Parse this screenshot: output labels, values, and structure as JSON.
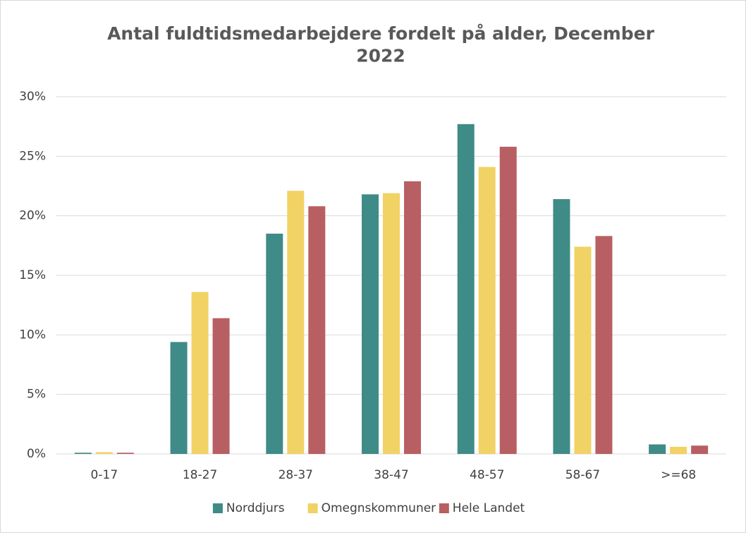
{
  "chart_data": {
    "type": "bar",
    "title": "Antal fuldtidsmedarbejdere fordelt på alder, December 2022",
    "categories": [
      "0-17",
      "18-27",
      "28-37",
      "38-47",
      "48-57",
      "58-67",
      ">=68"
    ],
    "series": [
      {
        "name": "Norddjurs",
        "color": "#3f8b87",
        "values": [
          0.1,
          9.4,
          18.5,
          21.8,
          27.7,
          21.4,
          0.8
        ]
      },
      {
        "name": "Omegnskommuner",
        "color": "#f1d264",
        "values": [
          0.15,
          13.6,
          22.1,
          21.9,
          24.1,
          17.4,
          0.6
        ]
      },
      {
        "name": "Hele Landet",
        "color": "#b85f63",
        "values": [
          0.1,
          11.4,
          20.8,
          22.9,
          25.8,
          18.3,
          0.7
        ]
      }
    ],
    "ylim": [
      0,
      30
    ],
    "yticks": [
      {
        "value": 0,
        "label": "0%"
      },
      {
        "value": 5,
        "label": "5%"
      },
      {
        "value": 10,
        "label": "10%"
      },
      {
        "value": 15,
        "label": "15%"
      },
      {
        "value": 20,
        "label": "20%"
      },
      {
        "value": 25,
        "label": "25%"
      },
      {
        "value": 30,
        "label": "30%"
      }
    ],
    "grid": true,
    "legend": "bottom"
  }
}
